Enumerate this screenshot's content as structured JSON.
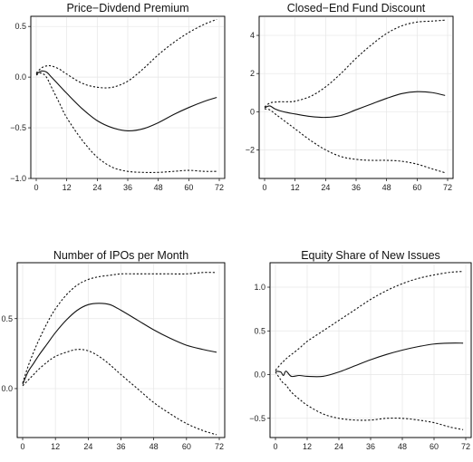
{
  "chart_data": [
    {
      "type": "line",
      "title": "Price−Divdend Premium",
      "xlim": [
        0,
        72
      ],
      "ylim": [
        -1.0,
        0.6
      ],
      "xticks": [
        0,
        12,
        24,
        36,
        48,
        60,
        72
      ],
      "yticks": [
        -1.0,
        -0.5,
        0.0,
        0.5
      ],
      "ytick_labels": [
        "−1.0",
        "−0.5",
        "0.0",
        "0.5"
      ],
      "x": [
        0,
        2,
        4,
        6,
        9,
        12,
        18,
        24,
        30,
        36,
        42,
        48,
        54,
        60,
        66,
        71
      ],
      "series": [
        {
          "role": "center",
          "values": [
            0.03,
            0.06,
            0.05,
            0.0,
            -0.08,
            -0.16,
            -0.31,
            -0.43,
            -0.5,
            -0.53,
            -0.51,
            -0.45,
            -0.37,
            -0.3,
            -0.24,
            -0.2
          ]
        },
        {
          "role": "upper",
          "values": [
            0.04,
            0.09,
            0.11,
            0.11,
            0.08,
            0.03,
            -0.06,
            -0.1,
            -0.1,
            -0.04,
            0.08,
            0.22,
            0.34,
            0.44,
            0.52,
            0.57
          ]
        },
        {
          "role": "lower",
          "values": [
            0.02,
            0.04,
            0.0,
            -0.1,
            -0.25,
            -0.4,
            -0.62,
            -0.79,
            -0.89,
            -0.93,
            -0.94,
            -0.94,
            -0.93,
            -0.92,
            -0.93,
            -0.93
          ]
        }
      ]
    },
    {
      "type": "line",
      "title": "Closed−End Fund Discount",
      "xlim": [
        0,
        72
      ],
      "ylim": [
        -3.5,
        5.0
      ],
      "xticks": [
        0,
        12,
        24,
        36,
        48,
        60,
        72
      ],
      "yticks": [
        -2,
        0,
        2,
        4
      ],
      "ytick_labels": [
        "−2",
        "0",
        "2",
        "4"
      ],
      "x": [
        0,
        2,
        4,
        6,
        9,
        12,
        18,
        24,
        30,
        36,
        42,
        48,
        54,
        60,
        66,
        71
      ],
      "series": [
        {
          "role": "center",
          "values": [
            0.2,
            0.3,
            0.15,
            0.05,
            -0.05,
            -0.12,
            -0.25,
            -0.3,
            -0.2,
            0.1,
            0.4,
            0.7,
            0.95,
            1.05,
            1.0,
            0.85
          ]
        },
        {
          "role": "upper",
          "values": [
            0.25,
            0.45,
            0.5,
            0.52,
            0.52,
            0.55,
            0.8,
            1.3,
            2.0,
            2.8,
            3.5,
            4.1,
            4.5,
            4.7,
            4.75,
            4.8
          ]
        },
        {
          "role": "lower",
          "values": [
            0.15,
            0.1,
            -0.1,
            -0.3,
            -0.6,
            -0.9,
            -1.5,
            -2.0,
            -2.35,
            -2.5,
            -2.55,
            -2.55,
            -2.6,
            -2.75,
            -3.0,
            -3.2
          ]
        }
      ]
    },
    {
      "type": "line",
      "title": "Number of IPOs per Month",
      "xlim": [
        0,
        72
      ],
      "ylim": [
        -0.35,
        0.9
      ],
      "xticks": [
        0,
        12,
        24,
        36,
        48,
        60,
        72
      ],
      "yticks": [
        0.0,
        0.5
      ],
      "ytick_labels": [
        "0.0",
        "0.5"
      ],
      "x": [
        0,
        2,
        4,
        6,
        9,
        12,
        16,
        20,
        24,
        28,
        32,
        36,
        42,
        48,
        54,
        60,
        66,
        71
      ],
      "series": [
        {
          "role": "center",
          "values": [
            0.03,
            0.12,
            0.18,
            0.24,
            0.32,
            0.4,
            0.49,
            0.56,
            0.6,
            0.61,
            0.6,
            0.56,
            0.49,
            0.42,
            0.36,
            0.31,
            0.28,
            0.26
          ]
        },
        {
          "role": "upper",
          "values": [
            0.04,
            0.16,
            0.26,
            0.35,
            0.47,
            0.57,
            0.67,
            0.74,
            0.78,
            0.8,
            0.81,
            0.82,
            0.82,
            0.82,
            0.82,
            0.82,
            0.83,
            0.83
          ]
        },
        {
          "role": "lower",
          "values": [
            0.02,
            0.06,
            0.1,
            0.14,
            0.19,
            0.23,
            0.26,
            0.28,
            0.27,
            0.23,
            0.17,
            0.1,
            -0.0,
            -0.1,
            -0.18,
            -0.25,
            -0.3,
            -0.33
          ]
        }
      ]
    },
    {
      "type": "line",
      "title": "Equity Share of New Issues",
      "xlim": [
        0,
        72
      ],
      "ylim": [
        -0.72,
        1.28
      ],
      "xticks": [
        0,
        12,
        24,
        36,
        48,
        60,
        72
      ],
      "yticks": [
        -0.5,
        0.0,
        0.5,
        1.0
      ],
      "ytick_labels": [
        "−0.5",
        "0.0",
        "0.5",
        "1.0"
      ],
      "x": [
        0,
        2,
        3,
        4,
        6,
        9,
        12,
        18,
        24,
        30,
        36,
        42,
        48,
        54,
        60,
        66,
        71
      ],
      "series": [
        {
          "role": "center",
          "values": [
            0.04,
            0.03,
            -0.01,
            0.04,
            -0.02,
            -0.01,
            -0.02,
            -0.02,
            0.03,
            0.1,
            0.17,
            0.23,
            0.28,
            0.32,
            0.35,
            0.36,
            0.36
          ]
        },
        {
          "role": "upper",
          "values": [
            0.05,
            0.12,
            0.15,
            0.18,
            0.23,
            0.3,
            0.38,
            0.5,
            0.62,
            0.74,
            0.86,
            0.96,
            1.04,
            1.1,
            1.14,
            1.17,
            1.18
          ]
        },
        {
          "role": "lower",
          "values": [
            0.03,
            -0.06,
            -0.1,
            -0.12,
            -0.2,
            -0.28,
            -0.35,
            -0.45,
            -0.5,
            -0.52,
            -0.52,
            -0.5,
            -0.5,
            -0.52,
            -0.55,
            -0.6,
            -0.63
          ]
        }
      ]
    }
  ]
}
